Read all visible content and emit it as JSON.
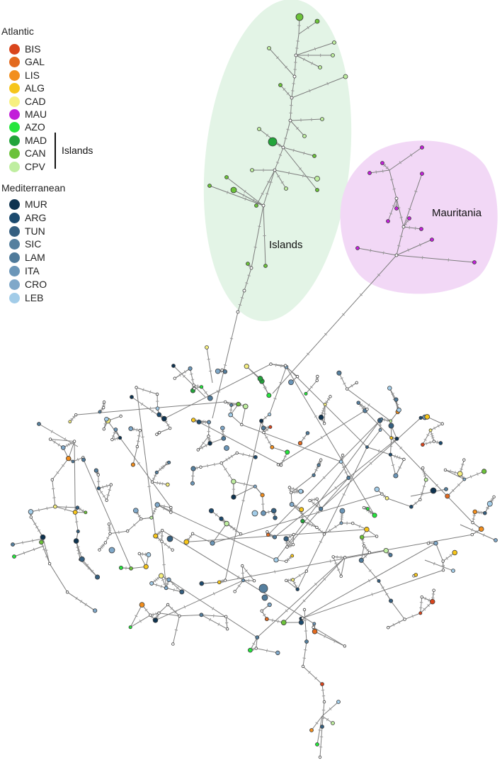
{
  "legend": {
    "atlantic": {
      "heading": "Atlantic",
      "items": [
        {
          "code": "BIS",
          "color": "#d9451c"
        },
        {
          "code": "GAL",
          "color": "#e36a1f"
        },
        {
          "code": "LIS",
          "color": "#f28e1d"
        },
        {
          "code": "ALG",
          "color": "#f6c51a"
        },
        {
          "code": "CAD",
          "color": "#f7f080"
        },
        {
          "code": "MAU",
          "color": "#c21fd9"
        },
        {
          "code": "AZO",
          "color": "#25e63c"
        },
        {
          "code": "MAD",
          "color": "#22a43a"
        },
        {
          "code": "CAN",
          "color": "#6cc23a"
        },
        {
          "code": "CPV",
          "color": "#bfeea0"
        }
      ],
      "islands_group_label": "Islands"
    },
    "mediterranean": {
      "heading": "Mediterranean",
      "items": [
        {
          "code": "MUR",
          "color": "#0e3350"
        },
        {
          "code": "ARG",
          "color": "#1c4a6e"
        },
        {
          "code": "TUN",
          "color": "#355f80"
        },
        {
          "code": "SIC",
          "color": "#557f9e"
        },
        {
          "code": "LAM",
          "color": "#4f7a9a"
        },
        {
          "code": "ITA",
          "color": "#6b96b8"
        },
        {
          "code": "CRO",
          "color": "#7fa8c9"
        },
        {
          "code": "LEB",
          "color": "#a2cce8"
        }
      ]
    }
  },
  "regions": {
    "islands": {
      "label": "Islands",
      "fill": "#e3f4e6"
    },
    "mauritania": {
      "label": "Mauritania",
      "fill": "#f2d8f6"
    }
  },
  "colors": {
    "edge": "#7d7d7d",
    "mutation_tick": "#9a9a9a",
    "node_outline": "#3a3a3a",
    "median_vector": "#ffffff"
  }
}
